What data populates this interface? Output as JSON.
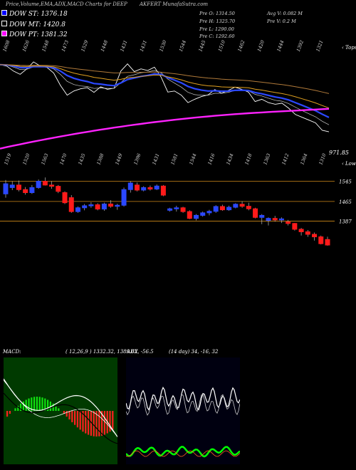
{
  "header": {
    "left": "Price,Volume,EMA,ADX,MACD Charts for DEEP",
    "right": "AKFERT MunafaSutra.com"
  },
  "legend": [
    {
      "label": "DOW ST: 1376.18",
      "color": "#0000ff"
    },
    {
      "label": "DOW MT: 1420.8",
      "color": "#000000"
    },
    {
      "label": "DOW PT: 1381.32",
      "color": "#ff00ff"
    }
  ],
  "ohlc": {
    "open": "Pre O: 1314.50",
    "high": "Pre H: 1325.70",
    "low": "Pre L: 1290.00",
    "close": "Pre C: 1292.60",
    "avg_vol": "Avg V: 0.082 M",
    "vol": "Pre V: 0.2 M"
  },
  "top_label": "‹ Tops",
  "low_label": "‹ Lows",
  "last_price": "971.85",
  "macd_label": "MACD:",
  "macd_values": "( 12,26,9 ) 1332.32, 1389.62, -56.5",
  "adx_label": "ADX",
  "adx_values": "(14 day) 34, -16, 32",
  "chart_data": {
    "type": "candlestick",
    "top_labels": [
      "1608",
      "1626",
      "1548",
      "1473",
      "1529",
      "1448",
      "1431",
      "1431",
      "1530",
      "1544",
      "1445",
      "1510",
      "1462",
      "1420",
      "1444",
      "1392",
      "1321"
    ],
    "bottom_labels": [
      "1519",
      "1520",
      "1563",
      "1470",
      "1435",
      "1388",
      "1449",
      "1396",
      "1431",
      "1581",
      "1544",
      "1416",
      "1434",
      "1418",
      "1363",
      "1412",
      "1364",
      "1310"
    ],
    "price_levels": [
      {
        "label": "1545",
        "value": 1545
      },
      {
        "label": "1465",
        "value": 1465
      },
      {
        "label": "1387",
        "value": 1387
      }
    ],
    "candles": [
      {
        "o": 1495,
        "h": 1550,
        "l": 1480,
        "c": 1535
      },
      {
        "o": 1520,
        "h": 1545,
        "l": 1510,
        "c": 1530
      },
      {
        "o": 1530,
        "h": 1548,
        "l": 1505,
        "c": 1512
      },
      {
        "o": 1512,
        "h": 1522,
        "l": 1492,
        "c": 1500
      },
      {
        "o": 1500,
        "h": 1530,
        "l": 1495,
        "c": 1520
      },
      {
        "o": 1520,
        "h": 1552,
        "l": 1515,
        "c": 1545
      },
      {
        "o": 1545,
        "h": 1560,
        "l": 1528,
        "c": 1530
      },
      {
        "o": 1530,
        "h": 1545,
        "l": 1515,
        "c": 1525
      },
      {
        "o": 1525,
        "h": 1530,
        "l": 1498,
        "c": 1505
      },
      {
        "o": 1500,
        "h": 1505,
        "l": 1455,
        "c": 1460
      },
      {
        "o": 1480,
        "h": 1490,
        "l": 1420,
        "c": 1425
      },
      {
        "o": 1425,
        "h": 1445,
        "l": 1420,
        "c": 1440
      },
      {
        "o": 1440,
        "h": 1455,
        "l": 1430,
        "c": 1448
      },
      {
        "o": 1448,
        "h": 1462,
        "l": 1440,
        "c": 1452
      },
      {
        "o": 1452,
        "h": 1458,
        "l": 1430,
        "c": 1435
      },
      {
        "o": 1435,
        "h": 1460,
        "l": 1428,
        "c": 1455
      },
      {
        "o": 1455,
        "h": 1470,
        "l": 1440,
        "c": 1446
      },
      {
        "o": 1446,
        "h": 1456,
        "l": 1432,
        "c": 1450
      },
      {
        "o": 1450,
        "h": 1520,
        "l": 1445,
        "c": 1512
      },
      {
        "o": 1512,
        "h": 1545,
        "l": 1500,
        "c": 1538
      },
      {
        "o": 1530,
        "h": 1540,
        "l": 1505,
        "c": 1510
      },
      {
        "o": 1510,
        "h": 1525,
        "l": 1505,
        "c": 1520
      },
      {
        "o": 1520,
        "h": 1528,
        "l": 1508,
        "c": 1514
      },
      {
        "o": 1514,
        "h": 1532,
        "l": 1510,
        "c": 1526
      },
      {
        "o": 1526,
        "h": 1530,
        "l": 1486,
        "c": 1490
      },
      {
        "o": 1430,
        "h": 1440,
        "l": 1425,
        "c": 1436
      },
      {
        "o": 1436,
        "h": 1448,
        "l": 1425,
        "c": 1440
      },
      {
        "o": 1440,
        "h": 1444,
        "l": 1420,
        "c": 1425
      },
      {
        "o": 1425,
        "h": 1430,
        "l": 1395,
        "c": 1398
      },
      {
        "o": 1398,
        "h": 1415,
        "l": 1390,
        "c": 1410
      },
      {
        "o": 1410,
        "h": 1425,
        "l": 1405,
        "c": 1420
      },
      {
        "o": 1420,
        "h": 1432,
        "l": 1410,
        "c": 1426
      },
      {
        "o": 1426,
        "h": 1450,
        "l": 1420,
        "c": 1445
      },
      {
        "o": 1445,
        "h": 1452,
        "l": 1428,
        "c": 1432
      },
      {
        "o": 1432,
        "h": 1448,
        "l": 1428,
        "c": 1442
      },
      {
        "o": 1442,
        "h": 1458,
        "l": 1438,
        "c": 1454
      },
      {
        "o": 1454,
        "h": 1466,
        "l": 1440,
        "c": 1446
      },
      {
        "o": 1446,
        "h": 1460,
        "l": 1430,
        "c": 1436
      },
      {
        "o": 1436,
        "h": 1440,
        "l": 1398,
        "c": 1402
      },
      {
        "o": 1402,
        "h": 1415,
        "l": 1375,
        "c": 1410
      },
      {
        "o": 1390,
        "h": 1402,
        "l": 1370,
        "c": 1398
      },
      {
        "o": 1398,
        "h": 1408,
        "l": 1385,
        "c": 1392
      },
      {
        "o": 1392,
        "h": 1402,
        "l": 1380,
        "c": 1396
      },
      {
        "o": 1384,
        "h": 1392,
        "l": 1370,
        "c": 1378
      },
      {
        "o": 1378,
        "h": 1380,
        "l": 1350,
        "c": 1355
      },
      {
        "o": 1355,
        "h": 1360,
        "l": 1330,
        "c": 1345
      },
      {
        "o": 1345,
        "h": 1352,
        "l": 1325,
        "c": 1335
      },
      {
        "o": 1335,
        "h": 1342,
        "l": 1310,
        "c": 1325
      },
      {
        "o": 1325,
        "h": 1330,
        "l": 1295,
        "c": 1298
      },
      {
        "o": 1314.5,
        "h": 1325.7,
        "l": 1290,
        "c": 1292.6
      }
    ],
    "ylim": [
      1260,
      1640
    ]
  }
}
